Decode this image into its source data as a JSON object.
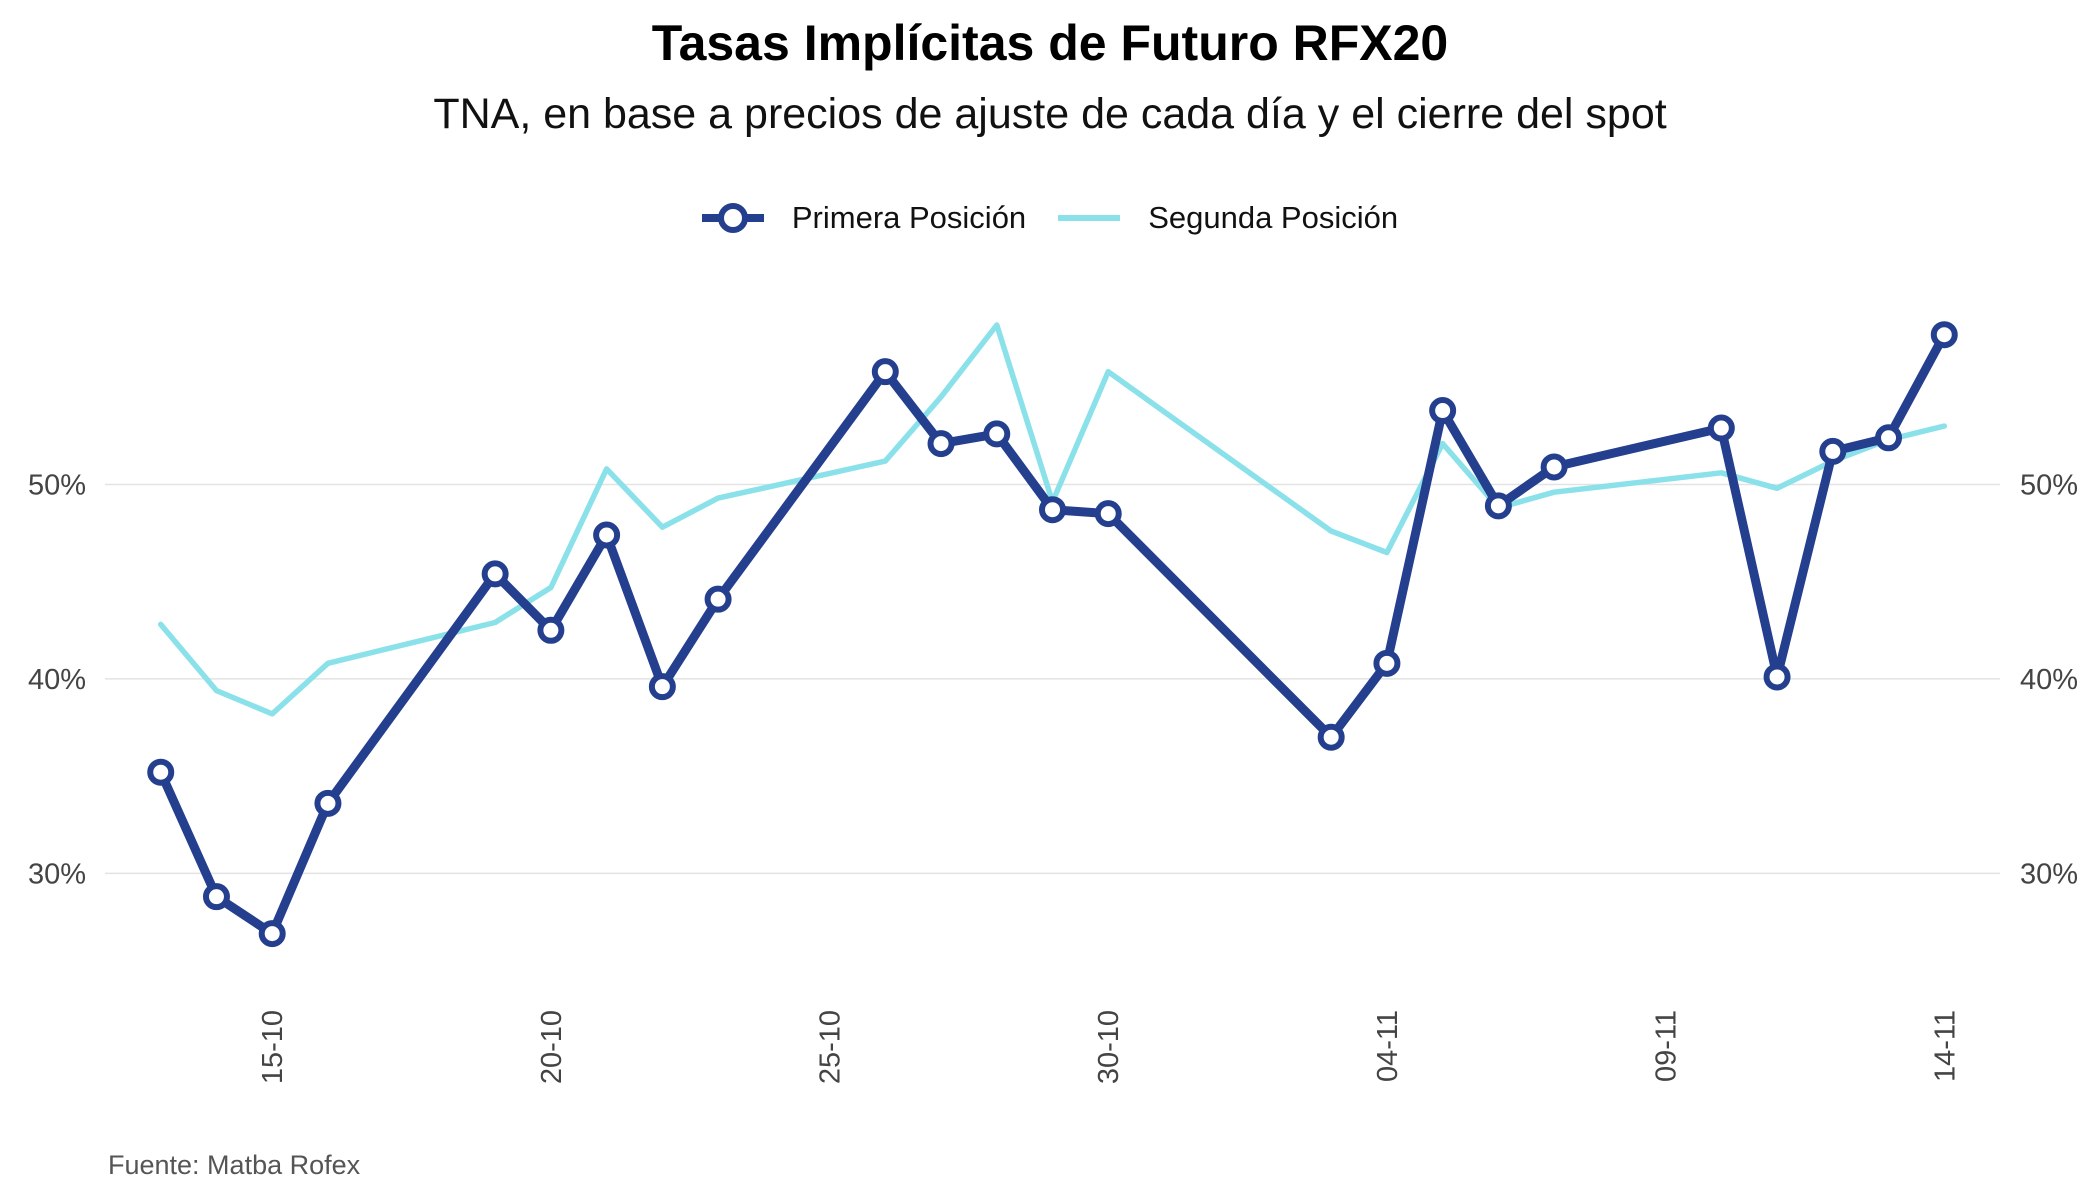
{
  "chart_data": {
    "type": "line",
    "title": "Tasas Implícitas de Futuro RFX20",
    "subtitle": "TNA, en base a precios de ajuste de cada día y el cierre del spot",
    "caption": "Fuente: Matba Rofex",
    "x_ticks": [
      "15-10",
      "20-10",
      "25-10",
      "30-10",
      "04-11",
      "09-11",
      "14-11"
    ],
    "x_tick_dates": [
      "2020-10-15",
      "2020-10-20",
      "2020-10-25",
      "2020-10-30",
      "2020-11-04",
      "2020-11-09",
      "2020-11-14"
    ],
    "y_ticks": [
      "30%",
      "40%",
      "50%"
    ],
    "y_tick_values": [
      30,
      40,
      50
    ],
    "ylim": [
      24,
      60
    ],
    "xlim": [
      "2020-10-12",
      "2020-11-15"
    ],
    "secondary_y_axis": true,
    "grid": "horizontal major",
    "legend_position": "top",
    "series": [
      {
        "name": "Primera Posición",
        "color": "#253F8F",
        "marker": "open-circle",
        "points": [
          {
            "x": "2020-10-13",
            "y": 35.2
          },
          {
            "x": "2020-10-14",
            "y": 28.8
          },
          {
            "x": "2020-10-15",
            "y": 26.9
          },
          {
            "x": "2020-10-16",
            "y": 33.6
          },
          {
            "x": "2020-10-19",
            "y": 45.4
          },
          {
            "x": "2020-10-20",
            "y": 42.5
          },
          {
            "x": "2020-10-21",
            "y": 47.4
          },
          {
            "x": "2020-10-22",
            "y": 39.6
          },
          {
            "x": "2020-10-23",
            "y": 44.1
          },
          {
            "x": "2020-10-26",
            "y": 55.8
          },
          {
            "x": "2020-10-27",
            "y": 52.1
          },
          {
            "x": "2020-10-28",
            "y": 52.6
          },
          {
            "x": "2020-10-29",
            "y": 48.7
          },
          {
            "x": "2020-10-30",
            "y": 48.5
          },
          {
            "x": "2020-11-03",
            "y": 37.0
          },
          {
            "x": "2020-11-04",
            "y": 40.8
          },
          {
            "x": "2020-11-05",
            "y": 53.8
          },
          {
            "x": "2020-11-06",
            "y": 48.9
          },
          {
            "x": "2020-11-07",
            "y": 50.9
          },
          {
            "x": "2020-11-10",
            "y": 52.9
          },
          {
            "x": "2020-11-11",
            "y": 40.1
          },
          {
            "x": "2020-11-12",
            "y": 51.7
          },
          {
            "x": "2020-11-13",
            "y": 52.4
          },
          {
            "x": "2020-11-14",
            "y": 57.7
          }
        ]
      },
      {
        "name": "Segunda Posición",
        "color": "#8BE1EA",
        "marker": "none",
        "points": [
          {
            "x": "2020-10-13",
            "y": 42.8
          },
          {
            "x": "2020-10-14",
            "y": 39.4
          },
          {
            "x": "2020-10-15",
            "y": 38.2
          },
          {
            "x": "2020-10-16",
            "y": 40.8
          },
          {
            "x": "2020-10-19",
            "y": 42.9
          },
          {
            "x": "2020-10-20",
            "y": 44.7
          },
          {
            "x": "2020-10-21",
            "y": 50.8
          },
          {
            "x": "2020-10-22",
            "y": 47.8
          },
          {
            "x": "2020-10-23",
            "y": 49.3
          },
          {
            "x": "2020-10-26",
            "y": 51.2
          },
          {
            "x": "2020-10-27",
            "y": 54.5
          },
          {
            "x": "2020-10-28",
            "y": 58.2
          },
          {
            "x": "2020-10-29",
            "y": 49.1
          },
          {
            "x": "2020-10-30",
            "y": 55.8
          },
          {
            "x": "2020-11-03",
            "y": 47.6
          },
          {
            "x": "2020-11-04",
            "y": 46.5
          },
          {
            "x": "2020-11-05",
            "y": 52.1
          },
          {
            "x": "2020-11-06",
            "y": 48.8
          },
          {
            "x": "2020-11-07",
            "y": 49.6
          },
          {
            "x": "2020-11-10",
            "y": 50.6
          },
          {
            "x": "2020-11-11",
            "y": 49.8
          },
          {
            "x": "2020-11-12",
            "y": 51.2
          },
          {
            "x": "2020-11-13",
            "y": 52.3
          },
          {
            "x": "2020-11-14",
            "y": 53.0
          }
        ]
      }
    ]
  }
}
